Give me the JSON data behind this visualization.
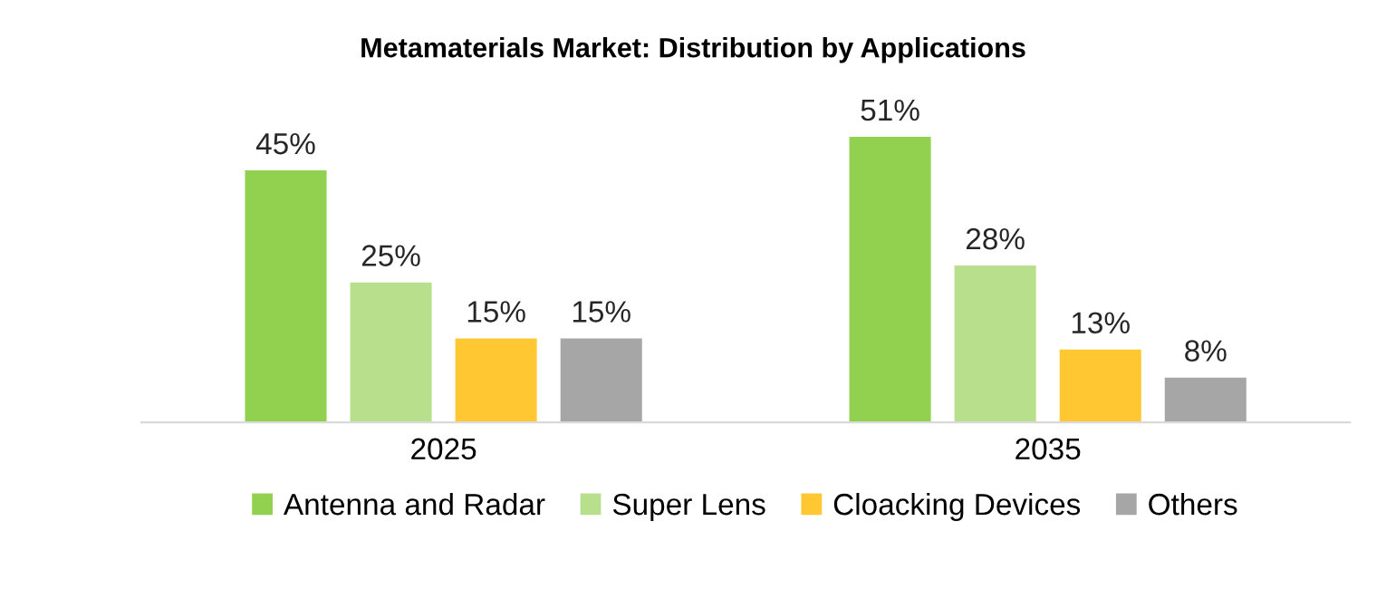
{
  "chart_data": {
    "type": "bar",
    "title": "Metamaterials Market: Distribution by Applications",
    "categories": [
      "2025",
      "2035"
    ],
    "series": [
      {
        "name": "Antenna and Radar",
        "color": "#92d050",
        "values": [
          45,
          51
        ],
        "value_labels": [
          "45%",
          "51%"
        ]
      },
      {
        "name": "Super Lens",
        "color": "#b8e08c",
        "values": [
          25,
          28
        ],
        "value_labels": [
          "25%",
          "28%"
        ]
      },
      {
        "name": "Cloacking Devices",
        "color": "#ffc832",
        "values": [
          15,
          13
        ],
        "value_labels": [
          "15%",
          "13%"
        ]
      },
      {
        "name": "Others",
        "color": "#a6a6a6",
        "values": [
          15,
          8
        ],
        "value_labels": [
          "15%",
          "8%"
        ]
      }
    ],
    "legend": "bottom",
    "grid": false
  }
}
